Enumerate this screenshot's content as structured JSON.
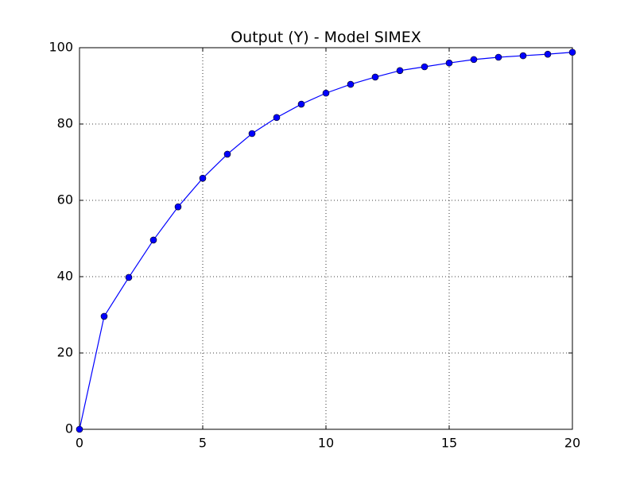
{
  "chart_data": {
    "type": "line",
    "title": "Output (Y) - Model SIMEX",
    "x": [
      0,
      1,
      2,
      3,
      4,
      5,
      6,
      7,
      8,
      9,
      10,
      11,
      12,
      13,
      14,
      15,
      16,
      17,
      18,
      19,
      20
    ],
    "values": [
      0,
      29.6,
      39.8,
      49.6,
      58.3,
      65.8,
      72.1,
      77.5,
      81.7,
      85.2,
      88.1,
      90.4,
      92.3,
      94.0,
      95.0,
      96.0,
      96.9,
      97.5,
      97.9,
      98.3,
      98.8
    ],
    "color": "#0000ff",
    "xlim": [
      0,
      20
    ],
    "ylim": [
      0,
      100
    ],
    "xticks": [
      0,
      5,
      10,
      15,
      20
    ],
    "yticks": [
      0,
      20,
      40,
      60,
      80,
      100
    ],
    "grid": true,
    "markers": true
  }
}
